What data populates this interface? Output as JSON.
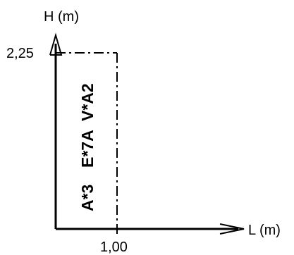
{
  "axes": {
    "x_label": "L (m)",
    "y_label": "H (m)",
    "x_tick": "1,00",
    "y_tick": "2,25"
  },
  "region_labels": [
    "A*3",
    "E*7A",
    "V*A2"
  ],
  "colors": {
    "line": "#000000",
    "background": "#ffffff"
  }
}
